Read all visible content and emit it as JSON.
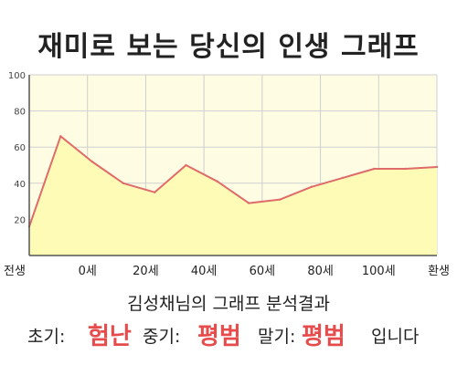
{
  "title": "재미로 보는 당신의 인생 그래프",
  "chart_data": {
    "type": "area",
    "x_categories": [
      "전생",
      "0세",
      "20세",
      "40세",
      "60세",
      "80세",
      "100세",
      "환생"
    ],
    "y_ticks": [
      20,
      40,
      60,
      80,
      100
    ],
    "ylim": [
      0,
      100
    ],
    "points": [
      16,
      66,
      52,
      40,
      35,
      50,
      41,
      29,
      31,
      38,
      43,
      48,
      48,
      49
    ],
    "colors": {
      "line": "#e06b6b",
      "fill": "#fefbb6",
      "plot_bg": "#fefde4",
      "grid": "#cfcfcf"
    },
    "grid": true
  },
  "result": {
    "heading": "김성채님의 그래프 분석결과",
    "early_label": "초기:",
    "early_value": "험난",
    "mid_label": "중기:",
    "mid_value": "평범",
    "late_label": "말기:",
    "late_value": "평범",
    "suffix": "입니다"
  }
}
